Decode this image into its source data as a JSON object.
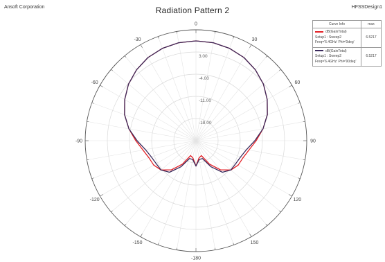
{
  "header": {
    "company": "Ansoft Corporation",
    "design": "HFSSDesign1"
  },
  "chart_data": {
    "type": "polar",
    "title": "Radiation Pattern 2",
    "angle_unit": "deg",
    "angle_ticks": [
      0,
      30,
      60,
      90,
      120,
      150,
      -180,
      -150,
      -120,
      -90,
      -60,
      -30
    ],
    "radial_ticks": [
      3.0,
      -4.0,
      -11.0,
      -18.0
    ],
    "radial_tick_labels": [
      "3.00",
      "-4.00",
      "-11.00",
      "-18.00"
    ],
    "rlim": [
      -25,
      10
    ],
    "grid": true,
    "legend_placement": "top-right",
    "legend": {
      "header_curve": "Curve Info",
      "header_value": "max",
      "entries": [
        {
          "name": "dB(GainTotal)",
          "line1": "Setup1 : Sweep2",
          "line2": "Freq='6.4GHz' Phi='0deg'",
          "max": "6.5217",
          "color": "#e31e24"
        },
        {
          "name": "dB(GainTotal)",
          "line1": "Setup1 : Sweep2",
          "line2": "Freq='6.4GHz' Phi='90deg'",
          "max": "6.5217",
          "color": "#3a2a5c"
        }
      ]
    },
    "series": [
      {
        "name": "dB(GainTotal) Phi='0deg'",
        "color": "#e31e24",
        "theta": [
          -180,
          -170,
          -160,
          -150,
          -140,
          -130,
          -120,
          -110,
          -100,
          -90,
          -80,
          -70,
          -60,
          -50,
          -40,
          -30,
          -20,
          -10,
          0,
          10,
          20,
          30,
          40,
          50,
          60,
          70,
          80,
          90,
          100,
          110,
          120,
          130,
          140,
          150,
          160,
          170,
          180
        ],
        "r": [
          -17.0,
          -19.5,
          -20.0,
          -16.5,
          -13.0,
          -10.6,
          -9.6,
          -9.2,
          -8.0,
          -6.0,
          -3.5,
          -1.0,
          1.0,
          2.8,
          4.2,
          5.3,
          6.0,
          6.4,
          6.5,
          6.4,
          6.0,
          5.3,
          4.2,
          2.8,
          1.0,
          -1.0,
          -3.5,
          -6.0,
          -8.0,
          -9.2,
          -9.6,
          -10.6,
          -13.0,
          -16.5,
          -20.0,
          -19.5,
          -17.0
        ]
      },
      {
        "name": "dB(GainTotal) Phi='90deg'",
        "color": "#3a2a5c",
        "theta": [
          -180,
          -170,
          -160,
          -150,
          -140,
          -130,
          -120,
          -110,
          -100,
          -90,
          -80,
          -70,
          -60,
          -50,
          -40,
          -30,
          -20,
          -10,
          0,
          10,
          20,
          30,
          40,
          50,
          60,
          70,
          80,
          90,
          100,
          110,
          120,
          130,
          140,
          150,
          160,
          170,
          180
        ],
        "r": [
          -17.0,
          -19.0,
          -19.0,
          -15.5,
          -12.0,
          -10.6,
          -10.5,
          -10.0,
          -8.8,
          -6.4,
          -3.5,
          -1.0,
          1.0,
          2.8,
          4.2,
          5.3,
          6.0,
          6.4,
          6.5,
          6.4,
          6.0,
          5.3,
          4.2,
          2.8,
          1.0,
          -1.0,
          -3.5,
          -6.4,
          -8.8,
          -10.0,
          -10.5,
          -10.6,
          -12.0,
          -15.5,
          -19.0,
          -19.0,
          -17.0
        ]
      }
    ]
  }
}
